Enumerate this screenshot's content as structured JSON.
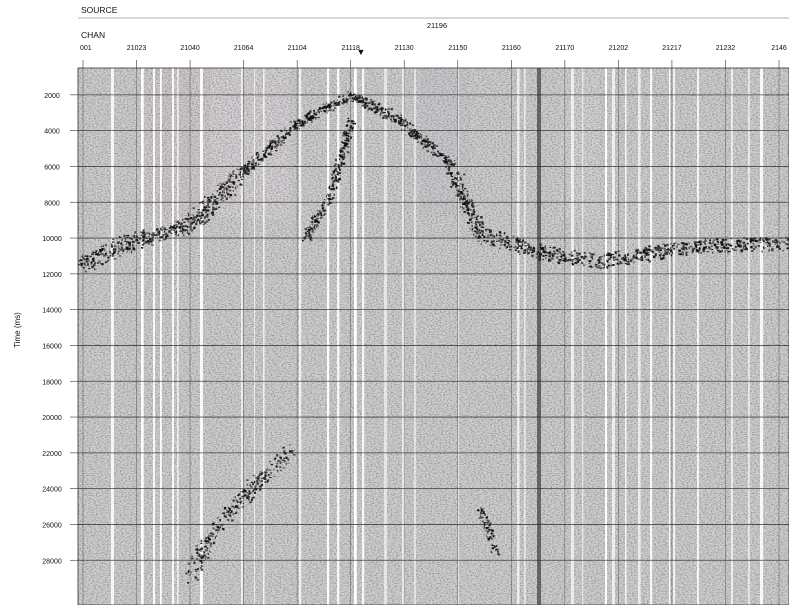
{
  "chart_data": {
    "type": "seismic",
    "header_rows": {
      "source_label": "SOURCE",
      "source_value": "21196",
      "chan_label": "CHAN"
    },
    "x_tick_labels": [
      "001",
      "21023",
      "21040",
      "21064",
      "21104",
      "21118",
      "21130",
      "21150",
      "21160",
      "21170",
      "21202",
      "21217",
      "21232",
      "2146"
    ],
    "ylabel": "Time (ms)",
    "y_tick_labels": [
      "2000",
      "4000",
      "6000",
      "8000",
      "10000",
      "12000",
      "14000",
      "16000",
      "18000",
      "20000",
      "22000",
      "24000",
      "26000",
      "28000"
    ],
    "y_ticks": [
      2000,
      4000,
      6000,
      8000,
      10000,
      12000,
      14000,
      16000,
      18000,
      20000,
      22000,
      24000,
      26000,
      28000
    ],
    "ylim": [
      500,
      30500
    ],
    "first_break_apex": {
      "channel_label": "21118",
      "time": 2000
    },
    "grid": true
  }
}
